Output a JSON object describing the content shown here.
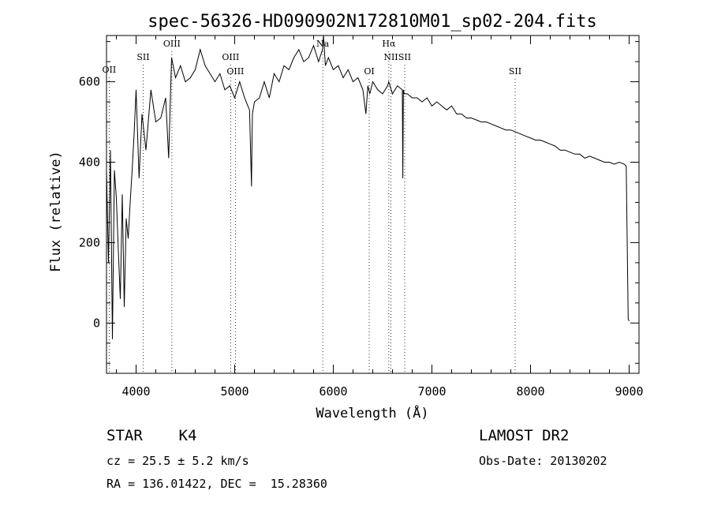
{
  "chart_data": {
    "type": "line",
    "title": "spec-56326-HD090902N172810M01_sp02-204.fits",
    "xlabel": "Wavelength (Å)",
    "ylabel": "Flux (relative)",
    "xlim": [
      3700,
      9100
    ],
    "ylim": [
      -125,
      715
    ],
    "x_ticks": [
      4000,
      5000,
      6000,
      7000,
      8000,
      9000
    ],
    "y_ticks": [
      0,
      200,
      400,
      600
    ],
    "grid": false,
    "series": [
      {
        "x": [
          3700,
          3720,
          3740,
          3760,
          3780,
          3800,
          3820,
          3840,
          3860,
          3880,
          3900,
          3920,
          3940,
          3960,
          3980,
          4000,
          4030,
          4060,
          4100,
          4150,
          4200,
          4250,
          4300,
          4330,
          4360,
          4400,
          4450,
          4500,
          4550,
          4600,
          4650,
          4700,
          4750,
          4800,
          4850,
          4900,
          4950,
          5000,
          5050,
          5100,
          5150,
          5170,
          5175,
          5180,
          5200,
          5250,
          5300,
          5350,
          5400,
          5450,
          5500,
          5550,
          5600,
          5650,
          5700,
          5750,
          5800,
          5850,
          5890,
          5900,
          5920,
          5950,
          6000,
          6050,
          6100,
          6150,
          6200,
          6250,
          6300,
          6330,
          6350,
          6370,
          6400,
          6450,
          6500,
          6550,
          6562,
          6600,
          6650,
          6700,
          6705,
          6710,
          6720,
          6750,
          6800,
          6850,
          6900,
          6950,
          7000,
          7050,
          7100,
          7150,
          7200,
          7250,
          7300,
          7350,
          7400,
          7450,
          7500,
          7550,
          7600,
          7650,
          7700,
          7750,
          7800,
          7850,
          7900,
          7950,
          8000,
          8050,
          8100,
          8150,
          8200,
          8250,
          8300,
          8350,
          8400,
          8450,
          8500,
          8550,
          8600,
          8650,
          8700,
          8750,
          8800,
          8850,
          8900,
          8950,
          8970,
          8990,
          9000
        ],
        "y": [
          380,
          150,
          430,
          -40,
          380,
          310,
          180,
          60,
          320,
          40,
          260,
          210,
          300,
          380,
          470,
          580,
          360,
          520,
          430,
          580,
          500,
          510,
          560,
          410,
          660,
          610,
          640,
          600,
          610,
          630,
          680,
          640,
          620,
          600,
          620,
          580,
          590,
          560,
          600,
          560,
          530,
          340,
          450,
          520,
          550,
          560,
          600,
          560,
          620,
          600,
          640,
          630,
          660,
          680,
          650,
          660,
          690,
          650,
          680,
          720,
          640,
          660,
          630,
          640,
          610,
          630,
          600,
          610,
          580,
          520,
          590,
          570,
          600,
          580,
          570,
          590,
          600,
          570,
          590,
          580,
          360,
          580,
          570,
          570,
          560,
          560,
          550,
          560,
          540,
          550,
          540,
          530,
          540,
          520,
          520,
          510,
          510,
          505,
          500,
          500,
          495,
          490,
          485,
          480,
          480,
          475,
          470,
          465,
          460,
          455,
          455,
          450,
          445,
          440,
          430,
          430,
          425,
          420,
          420,
          410,
          415,
          410,
          405,
          400,
          400,
          395,
          400,
          395,
          390,
          10,
          5
        ]
      }
    ],
    "lines": [
      {
        "label": "OII",
        "x": 3727
      },
      {
        "label": "SII",
        "x": 4072
      },
      {
        "label": "OIII",
        "x": 4363
      },
      {
        "label": "OIII",
        "x": 4959
      },
      {
        "label": "OIII",
        "x": 5007
      },
      {
        "label": "Na",
        "x": 5893
      },
      {
        "label": "OI",
        "x": 6364
      },
      {
        "label": "Hα",
        "x": 6563
      },
      {
        "label": "NII",
        "x": 6584
      },
      {
        "label": "SII",
        "x": 6724
      },
      {
        "label": "SII",
        "x": 7844
      }
    ]
  },
  "info": {
    "class_line": "STAR    K4",
    "survey": "LAMOST DR2",
    "cz": "cz = 25.5 ± 5.2 km/s",
    "obs_date": "Obs-Date: 20130202",
    "radec": "RA = 136.01422, DEC =  15.28360"
  }
}
